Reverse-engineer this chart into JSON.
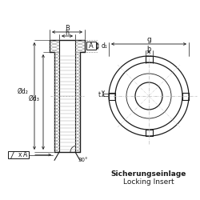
{
  "bg_color": "#ffffff",
  "line_color": "#1a1a1a",
  "text1": "Sicherungseinlage",
  "text2": "Locking Insert",
  "label_B": "B",
  "label_h": "h",
  "label_d2": "Ød₂",
  "label_d3": "Ød₃",
  "label_d1": "d₁",
  "label_30": "30°",
  "label_x": "x",
  "label_A": "A",
  "label_g": "g",
  "label_b": "b",
  "label_t": "t"
}
